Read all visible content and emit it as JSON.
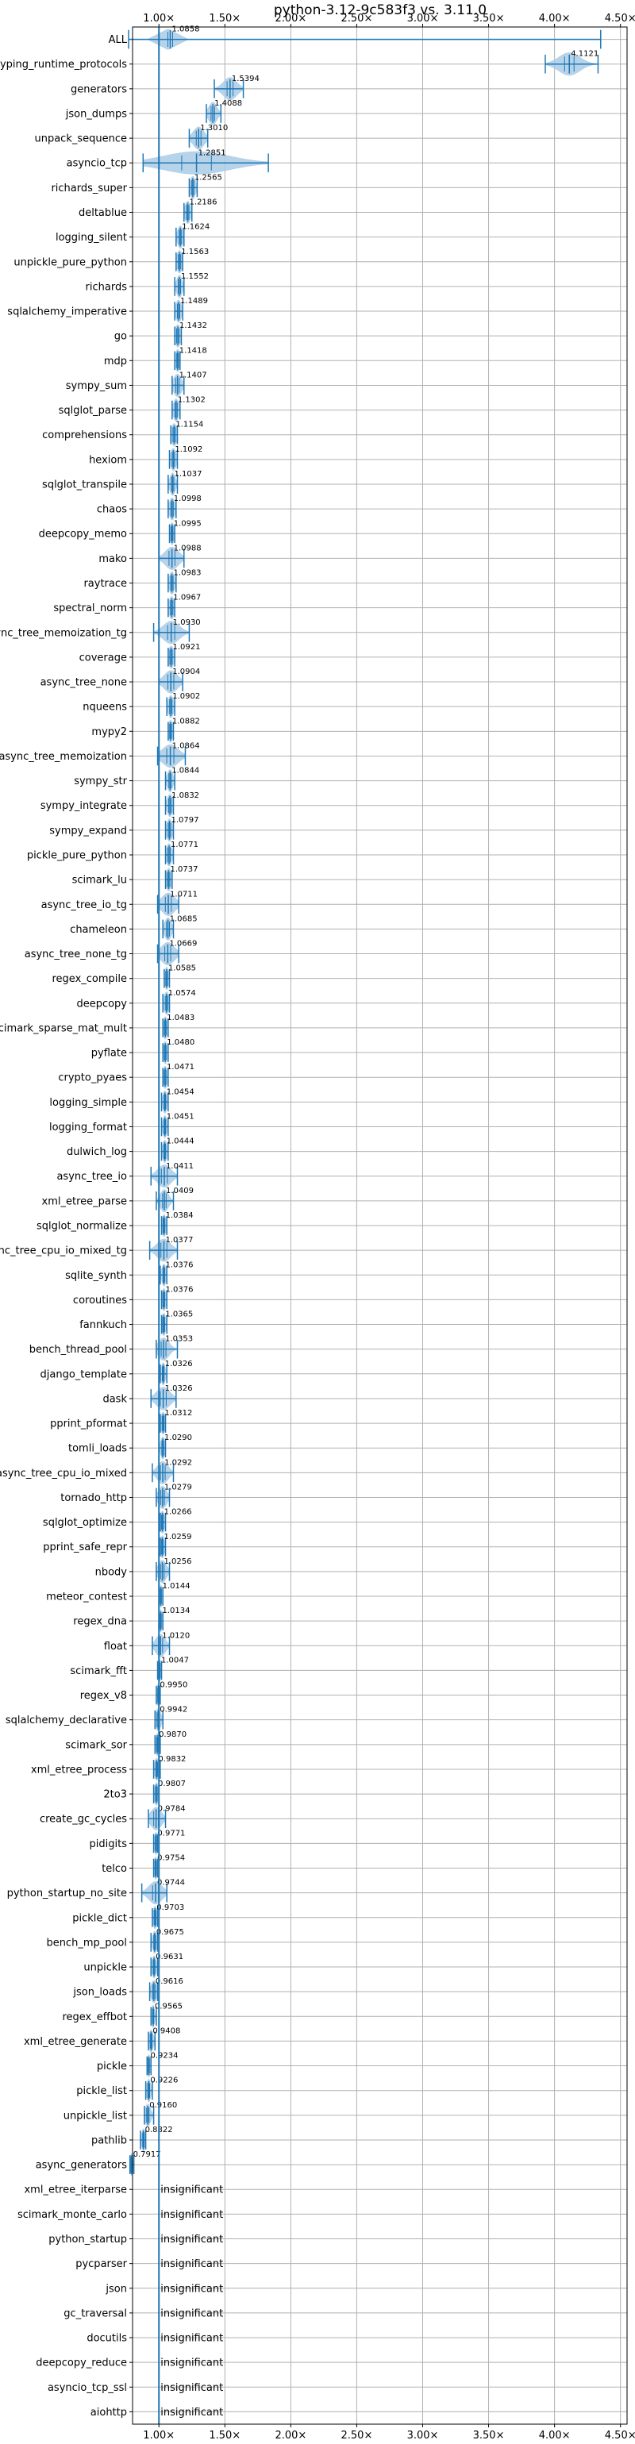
{
  "chart_data": {
    "type": "violin",
    "title": "python-3.12-9c583f3 vs. 3.11.0",
    "x_tick_labels": [
      "1.00×",
      "1.50×",
      "2.00×",
      "2.50×",
      "3.00×",
      "3.50×",
      "4.00×",
      "4.50×"
    ],
    "x_ticks": [
      1.0,
      1.5,
      2.0,
      2.5,
      3.0,
      3.5,
      4.0,
      4.5
    ],
    "xlim": [
      0.8,
      4.55
    ],
    "grid": true,
    "reference_line": 1.0,
    "insignificant_label": "insignificant",
    "colors": {
      "accent": "#1f77b4",
      "violin": "#a9cbe6",
      "grid": "#b0b0b0"
    },
    "benchmarks": [
      {
        "name": "ALL",
        "value": 1.0858,
        "value_label": "1.0858",
        "min": 0.77,
        "max": 4.35,
        "spread": 0.04
      },
      {
        "name": "typing_runtime_protocols",
        "value": 4.1121,
        "value_label": "4.1121",
        "min": 3.93,
        "max": 4.33,
        "spread": 0.08
      },
      {
        "name": "generators",
        "value": 1.5394,
        "value_label": "1.5394",
        "min": 1.42,
        "max": 1.64,
        "spread": 0.05
      },
      {
        "name": "json_dumps",
        "value": 1.4088,
        "value_label": "1.4088",
        "min": 1.36,
        "max": 1.47,
        "spread": 0.03
      },
      {
        "name": "unpack_sequence",
        "value": 1.301,
        "value_label": "1.3010",
        "min": 1.23,
        "max": 1.37,
        "spread": 0.04
      },
      {
        "name": "asyncio_tcp",
        "value": 1.2851,
        "value_label": "1.2851",
        "min": 0.88,
        "max": 1.83,
        "spread": 0.25
      },
      {
        "name": "richards_super",
        "value": 1.2565,
        "value_label": "1.2565",
        "min": 1.23,
        "max": 1.29,
        "spread": 0.02
      },
      {
        "name": "deltablue",
        "value": 1.2186,
        "value_label": "1.2186",
        "min": 1.19,
        "max": 1.25,
        "spread": 0.02
      },
      {
        "name": "logging_silent",
        "value": 1.1624,
        "value_label": "1.1624",
        "min": 1.13,
        "max": 1.19,
        "spread": 0.02
      },
      {
        "name": "unpickle_pure_python",
        "value": 1.1563,
        "value_label": "1.1563",
        "min": 1.13,
        "max": 1.18,
        "spread": 0.02
      },
      {
        "name": "richards",
        "value": 1.1552,
        "value_label": "1.1552",
        "min": 1.12,
        "max": 1.19,
        "spread": 0.02
      },
      {
        "name": "sqlalchemy_imperative",
        "value": 1.1489,
        "value_label": "1.1489",
        "min": 1.12,
        "max": 1.18,
        "spread": 0.02
      },
      {
        "name": "go",
        "value": 1.1432,
        "value_label": "1.1432",
        "min": 1.12,
        "max": 1.17,
        "spread": 0.02
      },
      {
        "name": "mdp",
        "value": 1.1418,
        "value_label": "1.1418",
        "min": 1.12,
        "max": 1.16,
        "spread": 0.015
      },
      {
        "name": "sympy_sum",
        "value": 1.1407,
        "value_label": "1.1407",
        "min": 1.1,
        "max": 1.19,
        "spread": 0.03
      },
      {
        "name": "sqlglot_parse",
        "value": 1.1302,
        "value_label": "1.1302",
        "min": 1.1,
        "max": 1.16,
        "spread": 0.02
      },
      {
        "name": "comprehensions",
        "value": 1.1154,
        "value_label": "1.1154",
        "min": 1.09,
        "max": 1.14,
        "spread": 0.02
      },
      {
        "name": "hexiom",
        "value": 1.1092,
        "value_label": "1.1092",
        "min": 1.08,
        "max": 1.14,
        "spread": 0.02
      },
      {
        "name": "sqlglot_transpile",
        "value": 1.1037,
        "value_label": "1.1037",
        "min": 1.07,
        "max": 1.14,
        "spread": 0.02
      },
      {
        "name": "chaos",
        "value": 1.0998,
        "value_label": "1.0998",
        "min": 1.07,
        "max": 1.13,
        "spread": 0.02
      },
      {
        "name": "deepcopy_memo",
        "value": 1.0995,
        "value_label": "1.0995",
        "min": 1.08,
        "max": 1.12,
        "spread": 0.015
      },
      {
        "name": "mako",
        "value": 1.0988,
        "value_label": "1.0988",
        "min": 1.0,
        "max": 1.19,
        "spread": 0.05
      },
      {
        "name": "raytrace",
        "value": 1.0983,
        "value_label": "1.0983",
        "min": 1.07,
        "max": 1.13,
        "spread": 0.02
      },
      {
        "name": "spectral_norm",
        "value": 1.0967,
        "value_label": "1.0967",
        "min": 1.07,
        "max": 1.12,
        "spread": 0.02
      },
      {
        "name": "async_tree_memoization_tg",
        "value": 1.093,
        "value_label": "1.0930",
        "min": 0.96,
        "max": 1.23,
        "spread": 0.06
      },
      {
        "name": "coverage",
        "value": 1.0921,
        "value_label": "1.0921",
        "min": 1.07,
        "max": 1.12,
        "spread": 0.02
      },
      {
        "name": "async_tree_none",
        "value": 1.0904,
        "value_label": "1.0904",
        "min": 1.0,
        "max": 1.18,
        "spread": 0.05
      },
      {
        "name": "nqueens",
        "value": 1.0902,
        "value_label": "1.0902",
        "min": 1.06,
        "max": 1.12,
        "spread": 0.02
      },
      {
        "name": "mypy2",
        "value": 1.0882,
        "value_label": "1.0882",
        "min": 1.07,
        "max": 1.11,
        "spread": 0.015
      },
      {
        "name": "async_tree_memoization",
        "value": 1.0864,
        "value_label": "1.0864",
        "min": 0.99,
        "max": 1.2,
        "spread": 0.06
      },
      {
        "name": "sympy_str",
        "value": 1.0844,
        "value_label": "1.0844",
        "min": 1.05,
        "max": 1.12,
        "spread": 0.02
      },
      {
        "name": "sympy_integrate",
        "value": 1.0832,
        "value_label": "1.0832",
        "min": 1.05,
        "max": 1.11,
        "spread": 0.02
      },
      {
        "name": "sympy_expand",
        "value": 1.0797,
        "value_label": "1.0797",
        "min": 1.05,
        "max": 1.11,
        "spread": 0.02
      },
      {
        "name": "pickle_pure_python",
        "value": 1.0771,
        "value_label": "1.0771",
        "min": 1.05,
        "max": 1.11,
        "spread": 0.02
      },
      {
        "name": "scimark_lu",
        "value": 1.0737,
        "value_label": "1.0737",
        "min": 1.05,
        "max": 1.1,
        "spread": 0.02
      },
      {
        "name": "async_tree_io_tg",
        "value": 1.0711,
        "value_label": "1.0711",
        "min": 0.99,
        "max": 1.15,
        "spread": 0.05
      },
      {
        "name": "chameleon",
        "value": 1.0685,
        "value_label": "1.0685",
        "min": 1.03,
        "max": 1.11,
        "spread": 0.025
      },
      {
        "name": "async_tree_none_tg",
        "value": 1.0669,
        "value_label": "1.0669",
        "min": 0.99,
        "max": 1.15,
        "spread": 0.05
      },
      {
        "name": "regex_compile",
        "value": 1.0585,
        "value_label": "1.0585",
        "min": 1.04,
        "max": 1.08,
        "spread": 0.015
      },
      {
        "name": "deepcopy",
        "value": 1.0574,
        "value_label": "1.0574",
        "min": 1.03,
        "max": 1.08,
        "spread": 0.02
      },
      {
        "name": "scimark_sparse_mat_mult",
        "value": 1.0483,
        "value_label": "1.0483",
        "min": 1.03,
        "max": 1.07,
        "spread": 0.015
      },
      {
        "name": "pyflate",
        "value": 1.048,
        "value_label": "1.0480",
        "min": 1.03,
        "max": 1.07,
        "spread": 0.015
      },
      {
        "name": "crypto_pyaes",
        "value": 1.0471,
        "value_label": "1.0471",
        "min": 1.03,
        "max": 1.07,
        "spread": 0.015
      },
      {
        "name": "logging_simple",
        "value": 1.0454,
        "value_label": "1.0454",
        "min": 1.02,
        "max": 1.07,
        "spread": 0.015
      },
      {
        "name": "logging_format",
        "value": 1.0451,
        "value_label": "1.0451",
        "min": 1.02,
        "max": 1.07,
        "spread": 0.015
      },
      {
        "name": "dulwich_log",
        "value": 1.0444,
        "value_label": "1.0444",
        "min": 1.02,
        "max": 1.07,
        "spread": 0.015
      },
      {
        "name": "async_tree_io",
        "value": 1.0411,
        "value_label": "1.0411",
        "min": 0.94,
        "max": 1.14,
        "spread": 0.05
      },
      {
        "name": "xml_etree_parse",
        "value": 1.0409,
        "value_label": "1.0409",
        "min": 0.98,
        "max": 1.11,
        "spread": 0.03
      },
      {
        "name": "sqlglot_normalize",
        "value": 1.0384,
        "value_label": "1.0384",
        "min": 1.02,
        "max": 1.06,
        "spread": 0.015
      },
      {
        "name": "async_tree_cpu_io_mixed_tg",
        "value": 1.0377,
        "value_label": "1.0377",
        "min": 0.93,
        "max": 1.14,
        "spread": 0.05
      },
      {
        "name": "sqlite_synth",
        "value": 1.0376,
        "value_label": "1.0376",
        "min": 1.01,
        "max": 1.06,
        "spread": 0.015
      },
      {
        "name": "coroutines",
        "value": 1.0376,
        "value_label": "1.0376",
        "min": 1.02,
        "max": 1.06,
        "spread": 0.015
      },
      {
        "name": "fannkuch",
        "value": 1.0365,
        "value_label": "1.0365",
        "min": 1.02,
        "max": 1.06,
        "spread": 0.015
      },
      {
        "name": "bench_thread_pool",
        "value": 1.0353,
        "value_label": "1.0353",
        "min": 0.98,
        "max": 1.14,
        "spread": 0.04
      },
      {
        "name": "django_template",
        "value": 1.0326,
        "value_label": "1.0326",
        "min": 1.01,
        "max": 1.06,
        "spread": 0.015
      },
      {
        "name": "dask",
        "value": 1.0326,
        "value_label": "1.0326",
        "min": 0.94,
        "max": 1.13,
        "spread": 0.05
      },
      {
        "name": "pprint_pformat",
        "value": 1.0312,
        "value_label": "1.0312",
        "min": 1.01,
        "max": 1.05,
        "spread": 0.015
      },
      {
        "name": "tomli_loads",
        "value": 1.029,
        "value_label": "1.0290",
        "min": 1.0,
        "max": 1.05,
        "spread": 0.015
      },
      {
        "name": "async_tree_cpu_io_mixed",
        "value": 1.0292,
        "value_label": "1.0292",
        "min": 0.95,
        "max": 1.11,
        "spread": 0.04
      },
      {
        "name": "tornado_http",
        "value": 1.0279,
        "value_label": "1.0279",
        "min": 0.98,
        "max": 1.08,
        "spread": 0.03
      },
      {
        "name": "sqlglot_optimize",
        "value": 1.0266,
        "value_label": "1.0266",
        "min": 1.01,
        "max": 1.05,
        "spread": 0.015
      },
      {
        "name": "pprint_safe_repr",
        "value": 1.0259,
        "value_label": "1.0259",
        "min": 1.01,
        "max": 1.05,
        "spread": 0.015
      },
      {
        "name": "nbody",
        "value": 1.0256,
        "value_label": "1.0256",
        "min": 0.98,
        "max": 1.08,
        "spread": 0.03
      },
      {
        "name": "meteor_contest",
        "value": 1.0144,
        "value_label": "1.0144",
        "min": 1.0,
        "max": 1.03,
        "spread": 0.01
      },
      {
        "name": "regex_dna",
        "value": 1.0134,
        "value_label": "1.0134",
        "min": 1.0,
        "max": 1.03,
        "spread": 0.01
      },
      {
        "name": "float",
        "value": 1.012,
        "value_label": "1.0120",
        "min": 0.95,
        "max": 1.08,
        "spread": 0.035
      },
      {
        "name": "scimark_fft",
        "value": 1.0047,
        "value_label": "1.0047",
        "min": 0.99,
        "max": 1.02,
        "spread": 0.01
      },
      {
        "name": "regex_v8",
        "value": 0.995,
        "value_label": "0.9950",
        "min": 0.98,
        "max": 1.01,
        "spread": 0.01
      },
      {
        "name": "sqlalchemy_declarative",
        "value": 0.9942,
        "value_label": "0.9942",
        "min": 0.97,
        "max": 1.03,
        "spread": 0.02
      },
      {
        "name": "scimark_sor",
        "value": 0.987,
        "value_label": "0.9870",
        "min": 0.97,
        "max": 1.01,
        "spread": 0.01
      },
      {
        "name": "xml_etree_process",
        "value": 0.9832,
        "value_label": "0.9832",
        "min": 0.96,
        "max": 1.01,
        "spread": 0.015
      },
      {
        "name": "2to3",
        "value": 0.9807,
        "value_label": "0.9807",
        "min": 0.96,
        "max": 1.0,
        "spread": 0.015
      },
      {
        "name": "create_gc_cycles",
        "value": 0.9784,
        "value_label": "0.9784",
        "min": 0.92,
        "max": 1.05,
        "spread": 0.04
      },
      {
        "name": "pidigits",
        "value": 0.9771,
        "value_label": "0.9771",
        "min": 0.96,
        "max": 0.99,
        "spread": 0.01
      },
      {
        "name": "telco",
        "value": 0.9754,
        "value_label": "0.9754",
        "min": 0.96,
        "max": 0.99,
        "spread": 0.01
      },
      {
        "name": "python_startup_no_site",
        "value": 0.9744,
        "value_label": "0.9744",
        "min": 0.87,
        "max": 1.06,
        "spread": 0.05
      },
      {
        "name": "pickle_dict",
        "value": 0.9703,
        "value_label": "0.9703",
        "min": 0.95,
        "max": 0.99,
        "spread": 0.015
      },
      {
        "name": "bench_mp_pool",
        "value": 0.9675,
        "value_label": "0.9675",
        "min": 0.94,
        "max": 0.99,
        "spread": 0.015
      },
      {
        "name": "unpickle",
        "value": 0.9631,
        "value_label": "0.9631",
        "min": 0.94,
        "max": 0.99,
        "spread": 0.015
      },
      {
        "name": "json_loads",
        "value": 0.9616,
        "value_label": "0.9616",
        "min": 0.93,
        "max": 0.99,
        "spread": 0.02
      },
      {
        "name": "regex_effbot",
        "value": 0.9565,
        "value_label": "0.9565",
        "min": 0.94,
        "max": 0.98,
        "spread": 0.01
      },
      {
        "name": "xml_etree_generate",
        "value": 0.9408,
        "value_label": "0.9408",
        "min": 0.92,
        "max": 0.97,
        "spread": 0.015
      },
      {
        "name": "pickle",
        "value": 0.9234,
        "value_label": "0.9234",
        "min": 0.91,
        "max": 0.94,
        "spread": 0.01
      },
      {
        "name": "pickle_list",
        "value": 0.9226,
        "value_label": "0.9226",
        "min": 0.9,
        "max": 0.95,
        "spread": 0.015
      },
      {
        "name": "unpickle_list",
        "value": 0.916,
        "value_label": "0.9160",
        "min": 0.89,
        "max": 0.96,
        "spread": 0.02
      },
      {
        "name": "pathlib",
        "value": 0.8822,
        "value_label": "0.8822",
        "min": 0.86,
        "max": 0.9,
        "spread": 0.012
      },
      {
        "name": "async_generators",
        "value": 0.7917,
        "value_label": "0.7917",
        "min": 0.78,
        "max": 0.81,
        "spread": 0.008
      },
      {
        "name": "xml_etree_iterparse",
        "insignificant": true
      },
      {
        "name": "scimark_monte_carlo",
        "insignificant": true
      },
      {
        "name": "python_startup",
        "insignificant": true
      },
      {
        "name": "pycparser",
        "insignificant": true
      },
      {
        "name": "json",
        "insignificant": true
      },
      {
        "name": "gc_traversal",
        "insignificant": true
      },
      {
        "name": "docutils",
        "insignificant": true
      },
      {
        "name": "deepcopy_reduce",
        "insignificant": true
      },
      {
        "name": "asyncio_tcp_ssl",
        "insignificant": true
      },
      {
        "name": "aiohttp",
        "insignificant": true
      }
    ]
  }
}
